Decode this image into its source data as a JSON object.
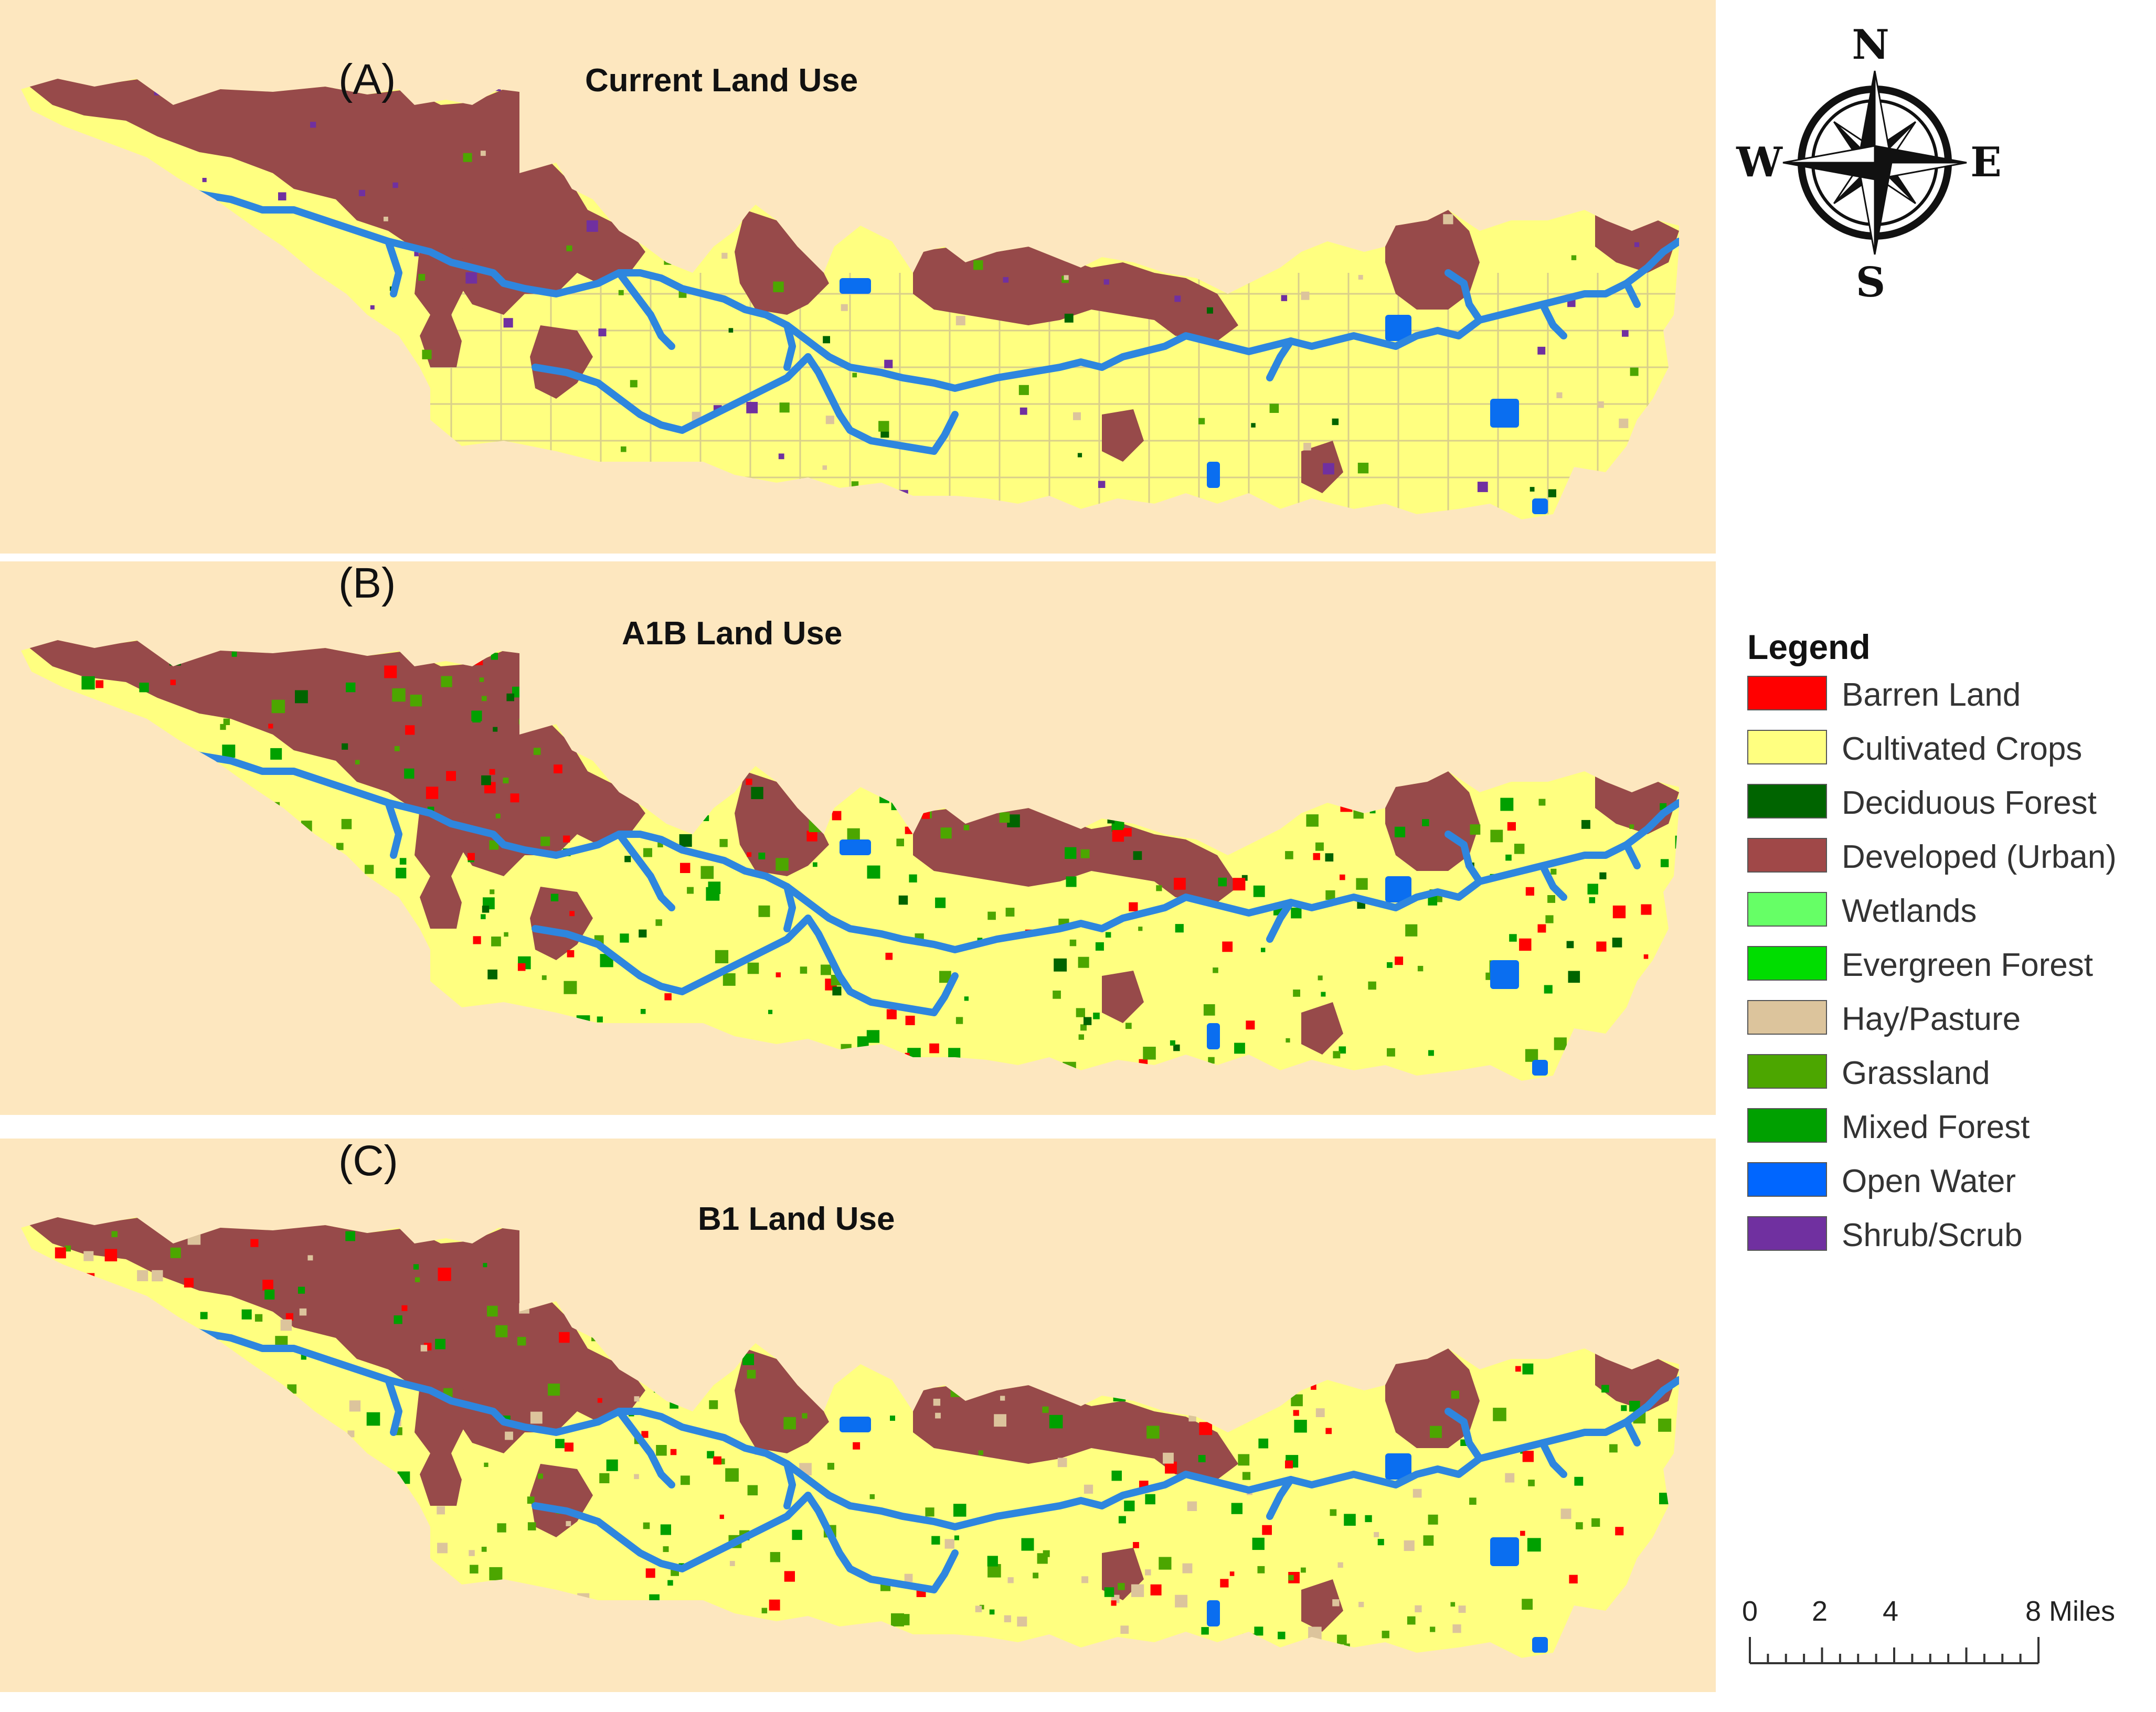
{
  "panels": [
    {
      "letter": "(A)",
      "title": "Current Land Use"
    },
    {
      "letter": "(B)",
      "title": "A1B Land Use"
    },
    {
      "letter": "(C)",
      "title": "B1 Land Use"
    }
  ],
  "compass": {
    "n": "N",
    "e": "E",
    "s": "S",
    "w": "W"
  },
  "legend": {
    "title": "Legend",
    "items": [
      {
        "label": "Barren Land",
        "color": "#ff0000"
      },
      {
        "label": "Cultivated Crops",
        "color": "#ffff80"
      },
      {
        "label": "Deciduous Forest",
        "color": "#006400"
      },
      {
        "label": "Developed (Urban)",
        "color": "#a04848"
      },
      {
        "label": "Wetlands",
        "color": "#66ff66"
      },
      {
        "label": "Evergreen Forest",
        "color": "#00dd00"
      },
      {
        "label": "Hay/Pasture",
        "color": "#dcc49c"
      },
      {
        "label": "Grassland",
        "color": "#4ca600"
      },
      {
        "label": "Mixed Forest",
        "color": "#00a000"
      },
      {
        "label": "Open Water",
        "color": "#0066ff"
      },
      {
        "label": "Shrub/Scrub",
        "color": "#7030a0"
      }
    ]
  },
  "scalebar": {
    "labels": [
      "0",
      "2",
      "4",
      "8 Miles"
    ]
  },
  "colors": {
    "background": "#fde7bf",
    "crops": "#ffff80",
    "urban": "#974a4a",
    "river": "#2e86de",
    "water": "#0a6ef0"
  }
}
